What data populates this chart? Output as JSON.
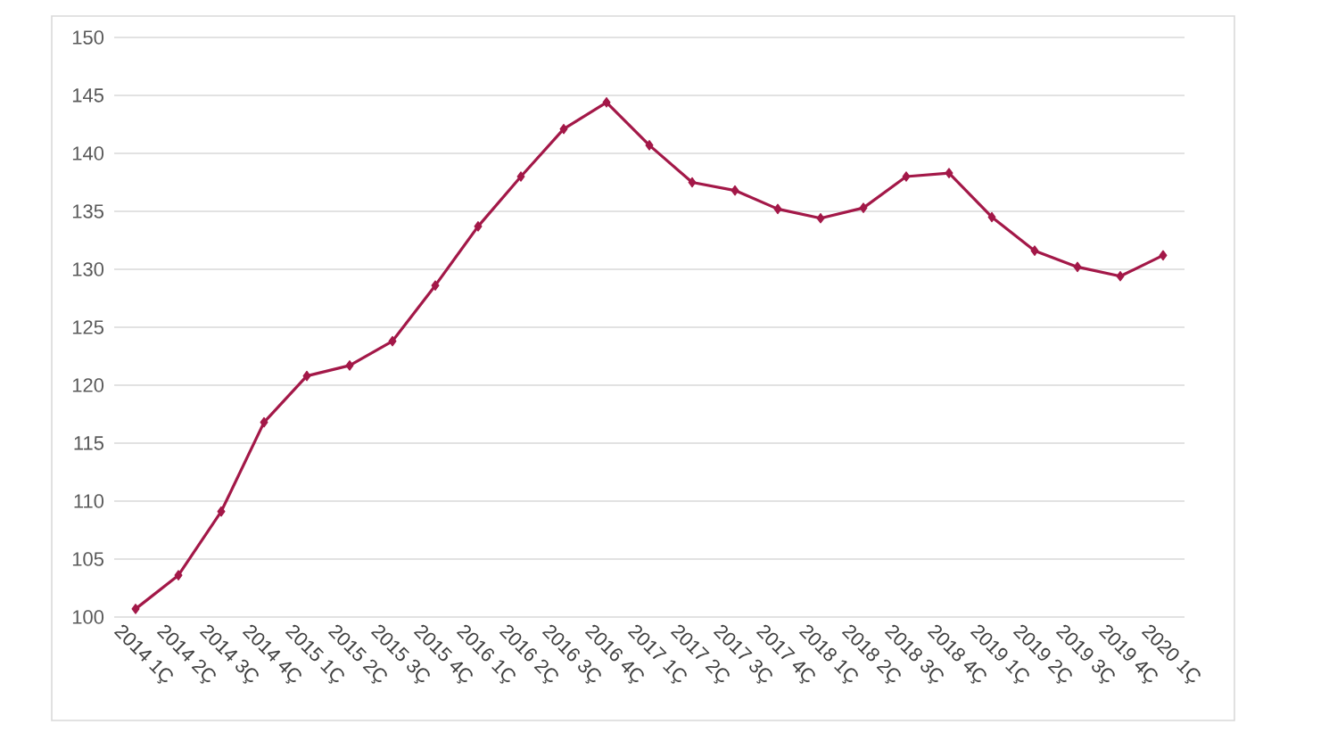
{
  "chart_data": {
    "type": "line",
    "categories": [
      "2014 1Ç",
      "2014 2Ç",
      "2014 3Ç",
      "2014 4Ç",
      "2015 1Ç",
      "2015 2Ç",
      "2015 3Ç",
      "2015 4Ç",
      "2016 1Ç",
      "2016 2Ç",
      "2016 3Ç",
      "2016 4Ç",
      "2017 1Ç",
      "2017 2Ç",
      "2017 3Ç",
      "2017 4Ç",
      "2018 1Ç",
      "2018 2Ç",
      "2018 3Ç",
      "2018 4Ç",
      "2019 1Ç",
      "2019 2Ç",
      "2019 3Ç",
      "2019 4Ç",
      "2020 1Ç"
    ],
    "series": [
      {
        "color": "#a31848",
        "values": [
          100.7,
          103.6,
          109.1,
          116.8,
          120.8,
          121.7,
          123.8,
          128.6,
          133.7,
          138.0,
          142.1,
          144.4,
          140.7,
          137.5,
          136.8,
          135.2,
          134.4,
          135.3,
          138.0,
          138.3,
          134.5,
          131.6,
          130.2,
          129.4,
          131.2
        ]
      }
    ],
    "ylim": [
      100,
      150
    ],
    "yticks": [
      100,
      105,
      110,
      115,
      120,
      125,
      130,
      135,
      140,
      145,
      150
    ],
    "grid": "y",
    "marker": "diamond",
    "line_style": "solid"
  }
}
